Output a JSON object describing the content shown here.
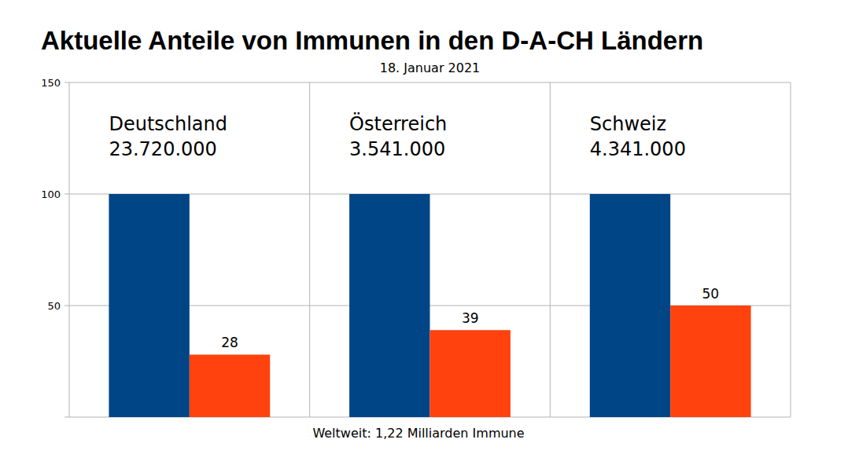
{
  "chart_data": {
    "type": "bar",
    "title": "Aktuelle Anteile von Immunen in den D-A-CH Ländern",
    "subtitle": "18. Januar 2021",
    "xlabel": "Weltweit: 1,22 Milliarden Immune",
    "categories": [
      "Deutschland",
      "Österreich",
      "Schweiz"
    ],
    "annotations": [
      "23.720.000",
      "3.541.000",
      "4.341.000"
    ],
    "series": [
      {
        "color": "#004586",
        "values": [
          100,
          100,
          100
        ],
        "data_labels": false
      },
      {
        "color": "#ff420e",
        "values": [
          28,
          39,
          50
        ],
        "data_labels": true
      }
    ],
    "ylim": [
      0,
      150
    ],
    "yticks": [
      50,
      100,
      150
    ],
    "grid": true
  }
}
